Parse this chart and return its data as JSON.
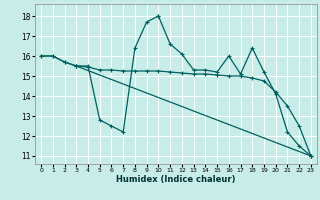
{
  "title": "",
  "xlabel": "Humidex (Indice chaleur)",
  "bg_color": "#c8ece8",
  "line_color": "#006060",
  "grid_color": "#ffffff",
  "xlim": [
    -0.5,
    23.5
  ],
  "ylim": [
    10.6,
    18.6
  ],
  "yticks": [
    11,
    12,
    13,
    14,
    15,
    16,
    17,
    18
  ],
  "xticks": [
    0,
    1,
    2,
    3,
    4,
    5,
    6,
    7,
    8,
    9,
    10,
    11,
    12,
    13,
    14,
    15,
    16,
    17,
    18,
    19,
    20,
    21,
    22,
    23
  ],
  "series": [
    {
      "x": [
        0,
        1,
        2,
        3,
        4,
        5,
        6,
        7,
        8,
        9,
        10
      ],
      "y": [
        16.0,
        16.0,
        15.7,
        15.5,
        15.5,
        12.8,
        12.5,
        12.2,
        16.4,
        17.7,
        18.0
      ]
    },
    {
      "x": [
        10,
        11,
        12,
        13,
        14,
        15,
        16,
        17,
        18,
        19,
        20,
        21,
        22,
        23
      ],
      "y": [
        18.0,
        16.6,
        16.1,
        15.3,
        15.3,
        15.2,
        16.0,
        15.1,
        16.4,
        15.2,
        14.1,
        12.2,
        11.5,
        11.0
      ]
    },
    {
      "x": [
        0,
        1,
        2,
        3,
        23
      ],
      "y": [
        16.0,
        16.0,
        15.7,
        15.5,
        11.0
      ]
    },
    {
      "x": [
        3,
        4,
        5,
        6,
        7,
        8,
        9,
        10,
        11,
        12,
        13,
        14,
        15,
        16,
        17,
        18,
        19,
        20,
        21,
        22,
        23
      ],
      "y": [
        15.5,
        15.45,
        15.3,
        15.3,
        15.25,
        15.25,
        15.25,
        15.25,
        15.2,
        15.15,
        15.1,
        15.1,
        15.05,
        15.0,
        15.0,
        14.9,
        14.75,
        14.2,
        13.5,
        12.5,
        11.0
      ]
    }
  ]
}
